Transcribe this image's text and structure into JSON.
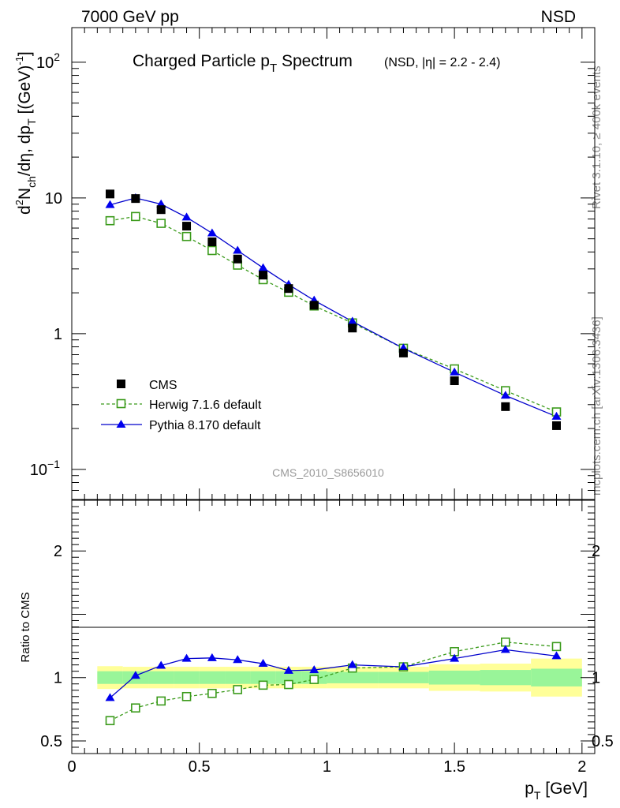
{
  "header": {
    "left": "7000 GeV pp",
    "right": "NSD"
  },
  "side_labels": {
    "rivet": "Rivet 3.1.10, ≥ 400k events",
    "mcplots": "mcplots.cern.ch [arXiv:1306.3436]"
  },
  "chart_data": [
    {
      "type": "scatter",
      "panel": "main",
      "title": "Charged Particle pT Spectrum",
      "title_main": "Charged Particle p",
      "title_sub": "T",
      "title_tail": " Spectrum",
      "subtitle": "(NSD, |η| = 2.2 - 2.4)",
      "ylabel": "d²N_ch/dη, dp_T [(GeV)⁻¹]",
      "y_scale": "log",
      "ylim": [
        0.06,
        180
      ],
      "xlim": [
        0,
        2.05
      ],
      "y_ticks": [
        {
          "value": 100,
          "label": "10",
          "sup": "2"
        },
        {
          "value": 10,
          "label": "10",
          "sup": ""
        },
        {
          "value": 1,
          "label": "1",
          "sup": ""
        },
        {
          "value": 0.1,
          "label": "10",
          "sup": "−1"
        }
      ],
      "watermark": "CMS_2010_S8656010",
      "legend_position": "bottom-left",
      "series": [
        {
          "name": "CMS",
          "style": "black-square",
          "x": [
            0.15,
            0.25,
            0.35,
            0.45,
            0.55,
            0.65,
            0.75,
            0.85,
            0.95,
            1.1,
            1.3,
            1.5,
            1.7,
            1.9
          ],
          "y": [
            10.7,
            9.9,
            8.2,
            6.2,
            4.75,
            3.55,
            2.7,
            2.15,
            1.62,
            1.1,
            0.72,
            0.45,
            0.29,
            0.21
          ]
        },
        {
          "name": "Herwig 7.1.6 default",
          "style": "green-open-square-dashed",
          "x": [
            0.15,
            0.25,
            0.35,
            0.45,
            0.55,
            0.65,
            0.75,
            0.85,
            0.95,
            1.1,
            1.3,
            1.5,
            1.7,
            1.9
          ],
          "y": [
            6.8,
            7.3,
            6.5,
            5.2,
            4.1,
            3.2,
            2.5,
            2.02,
            1.6,
            1.2,
            0.78,
            0.55,
            0.38,
            0.265
          ]
        },
        {
          "name": "Pythia 8.170 default",
          "style": "blue-triangle-solid",
          "x": [
            0.15,
            0.25,
            0.35,
            0.45,
            0.55,
            0.65,
            0.75,
            0.85,
            0.95,
            1.1,
            1.3,
            1.5,
            1.7,
            1.9
          ],
          "y": [
            8.9,
            10.0,
            9.0,
            7.2,
            5.5,
            4.1,
            3.05,
            2.3,
            1.76,
            1.23,
            0.78,
            0.52,
            0.35,
            0.245
          ]
        }
      ]
    },
    {
      "type": "line",
      "panel": "ratio",
      "ylabel": "Ratio to CMS",
      "xlabel": "p_T [GeV]",
      "xlabel_main": "p",
      "xlabel_sub": "T",
      "xlabel_tail": " [GeV]",
      "xlim": [
        0,
        2.05
      ],
      "ylim": [
        0.4,
        2.4
      ],
      "y_ticks": [
        {
          "value": 0.5,
          "label": "0.5"
        },
        {
          "value": 1,
          "label": "1"
        },
        {
          "value": 2,
          "label": "2"
        }
      ],
      "x_ticks": [
        {
          "value": 0,
          "label": "0"
        },
        {
          "value": 0.5,
          "label": "0.5"
        },
        {
          "value": 1,
          "label": "1"
        },
        {
          "value": 1.5,
          "label": "1.5"
        },
        {
          "value": 2,
          "label": "2"
        }
      ],
      "bands": [
        {
          "x0": 0.1,
          "x1": 0.2,
          "stat": [
            0.95,
            1.05
          ],
          "syst": [
            0.91,
            1.09
          ]
        },
        {
          "x0": 0.2,
          "x1": 0.3,
          "stat": [
            0.95,
            1.05
          ],
          "syst": [
            0.915,
            1.085
          ]
        },
        {
          "x0": 0.3,
          "x1": 0.4,
          "stat": [
            0.95,
            1.05
          ],
          "syst": [
            0.915,
            1.085
          ]
        },
        {
          "x0": 0.4,
          "x1": 0.5,
          "stat": [
            0.95,
            1.05
          ],
          "syst": [
            0.915,
            1.085
          ]
        },
        {
          "x0": 0.5,
          "x1": 0.6,
          "stat": [
            0.95,
            1.05
          ],
          "syst": [
            0.915,
            1.085
          ]
        },
        {
          "x0": 0.6,
          "x1": 0.7,
          "stat": [
            0.95,
            1.05
          ],
          "syst": [
            0.915,
            1.085
          ]
        },
        {
          "x0": 0.7,
          "x1": 0.8,
          "stat": [
            0.95,
            1.05
          ],
          "syst": [
            0.915,
            1.085
          ]
        },
        {
          "x0": 0.8,
          "x1": 0.9,
          "stat": [
            0.95,
            1.05
          ],
          "syst": [
            0.915,
            1.085
          ]
        },
        {
          "x0": 0.9,
          "x1": 1.0,
          "stat": [
            0.95,
            1.05
          ],
          "syst": [
            0.915,
            1.085
          ]
        },
        {
          "x0": 1.0,
          "x1": 1.2,
          "stat": [
            0.955,
            1.045
          ],
          "syst": [
            0.915,
            1.085
          ]
        },
        {
          "x0": 1.2,
          "x1": 1.4,
          "stat": [
            0.955,
            1.045
          ],
          "syst": [
            0.915,
            1.085
          ]
        },
        {
          "x0": 1.4,
          "x1": 1.6,
          "stat": [
            0.945,
            1.055
          ],
          "syst": [
            0.895,
            1.105
          ]
        },
        {
          "x0": 1.6,
          "x1": 1.8,
          "stat": [
            0.94,
            1.06
          ],
          "syst": [
            0.89,
            1.11
          ]
        },
        {
          "x0": 1.8,
          "x1": 2.0,
          "stat": [
            0.93,
            1.07
          ],
          "syst": [
            0.85,
            1.15
          ]
        }
      ],
      "series": [
        {
          "name": "Herwig 7.1.6 default",
          "style": "green-open-square-dashed",
          "x": [
            0.15,
            0.25,
            0.35,
            0.45,
            0.55,
            0.65,
            0.75,
            0.85,
            0.95,
            1.1,
            1.3,
            1.5,
            1.7,
            1.9
          ],
          "y": [
            0.66,
            0.76,
            0.815,
            0.85,
            0.875,
            0.905,
            0.94,
            0.945,
            0.985,
            1.075,
            1.085,
            1.205,
            1.28,
            1.245
          ]
        },
        {
          "name": "Pythia 8.170 default",
          "style": "blue-triangle-solid",
          "x": [
            0.15,
            0.25,
            0.35,
            0.45,
            0.55,
            0.65,
            0.75,
            0.85,
            0.95,
            1.1,
            1.3,
            1.5,
            1.7,
            1.9
          ],
          "y": [
            0.84,
            1.015,
            1.095,
            1.15,
            1.155,
            1.14,
            1.11,
            1.055,
            1.06,
            1.1,
            1.085,
            1.15,
            1.22,
            1.17
          ]
        }
      ]
    }
  ]
}
